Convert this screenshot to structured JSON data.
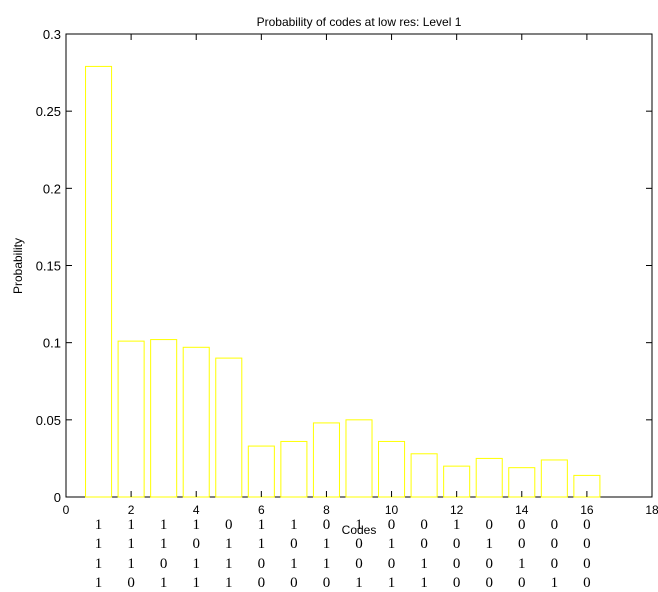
{
  "chart_data": {
    "type": "bar",
    "title": "Probability of codes at low res:  Level 1",
    "xlabel": "Codes",
    "ylabel": "Probability",
    "xlim": [
      0,
      18
    ],
    "ylim": [
      0,
      0.3
    ],
    "yticks": [
      "0",
      "0.05",
      "0.1",
      "0.15",
      "0.2",
      "0.25",
      "0.3"
    ],
    "ytick_values": [
      0,
      0.05,
      0.1,
      0.15,
      0.2,
      0.25,
      0.3
    ],
    "xtick_values": [
      0,
      2,
      4,
      6,
      8,
      10,
      12,
      14,
      16,
      18
    ],
    "xticks": [
      "0",
      "2",
      "4",
      "6",
      "8",
      "10",
      "12",
      "14",
      "16",
      "18"
    ],
    "categories": [
      1,
      2,
      3,
      4,
      5,
      6,
      7,
      8,
      9,
      10,
      11,
      12,
      13,
      14,
      15,
      16
    ],
    "values": [
      0.279,
      0.101,
      0.102,
      0.097,
      0.09,
      0.033,
      0.036,
      0.048,
      0.05,
      0.036,
      0.028,
      0.02,
      0.025,
      0.019,
      0.024,
      0.014
    ],
    "bar_color": "#ffff00",
    "grid": false,
    "code_rows": [
      [
        "1",
        "1",
        "1",
        "1",
        "0",
        "1",
        "1",
        "0",
        "1",
        "0",
        "0",
        "1",
        "0",
        "0",
        "0",
        "0"
      ],
      [
        "1",
        "1",
        "1",
        "0",
        "1",
        "1",
        "0",
        "1",
        "0",
        "1",
        "0",
        "0",
        "1",
        "0",
        "0",
        "0"
      ],
      [
        "1",
        "1",
        "0",
        "1",
        "1",
        "0",
        "1",
        "1",
        "0",
        "0",
        "1",
        "0",
        "0",
        "1",
        "0",
        "0"
      ],
      [
        "1",
        "0",
        "1",
        "1",
        "1",
        "0",
        "0",
        "0",
        "1",
        "1",
        "1",
        "0",
        "0",
        "0",
        "1",
        "0"
      ]
    ]
  }
}
